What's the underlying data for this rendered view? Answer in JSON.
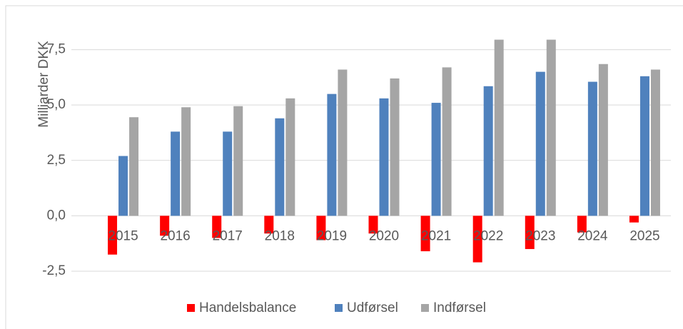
{
  "chart_data": {
    "type": "bar",
    "y_label": "Milliarder DKK",
    "categories": [
      "2015",
      "2016",
      "2017",
      "2018",
      "2019",
      "2020",
      "2021",
      "2022",
      "2023",
      "2024",
      "2025"
    ],
    "series": [
      {
        "name": "Handelsbalance",
        "color": "#ff0000",
        "values": [
          -1.75,
          -0.9,
          -1.0,
          -0.8,
          -1.1,
          -0.8,
          -1.6,
          -2.1,
          -1.5,
          -0.75,
          -0.3
        ]
      },
      {
        "name": "Udførsel",
        "color": "#4f81bd",
        "values": [
          2.7,
          3.8,
          3.8,
          4.4,
          5.5,
          5.3,
          5.1,
          5.85,
          6.5,
          6.05,
          6.3
        ]
      },
      {
        "name": "Indførsel",
        "color": "#a5a5a5",
        "values": [
          4.45,
          4.9,
          4.95,
          5.3,
          6.6,
          6.2,
          6.7,
          7.95,
          7.95,
          6.85,
          6.6
        ]
      }
    ],
    "ylim": [
      -2.5,
      9
    ],
    "yticks": [
      {
        "value": -2.5,
        "label": "-2,5"
      },
      {
        "value": 0,
        "label": "0,0"
      },
      {
        "value": 2.5,
        "label": "2,5"
      },
      {
        "value": 5,
        "label": "5,0"
      },
      {
        "value": 7.5,
        "label": "7,5"
      }
    ],
    "grid": true,
    "legend": "bottom"
  }
}
